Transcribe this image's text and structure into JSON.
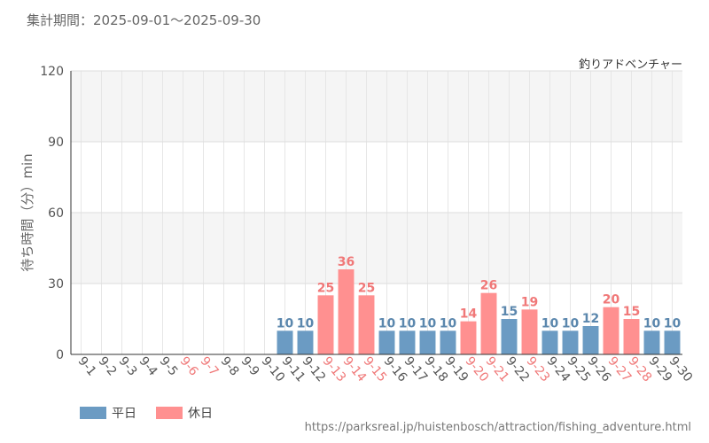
{
  "header": {
    "period": "集計期間：2025-09-01～2025-09-30"
  },
  "attraction_name": "釣りアドベンチャー",
  "source_url": "https://parksreal.jp/huistenbosch/attraction/fishing_adventure.html",
  "colors": {
    "weekday": "#6b9bc3",
    "holiday": "#ff9090",
    "weekday_text": "#5b87ad",
    "holiday_text": "#f07878",
    "tick_default": "#555555"
  },
  "chart_data": {
    "type": "bar",
    "title": "",
    "ylabel": "待ち時間（分）min",
    "xlabel": "",
    "ylim": [
      0,
      120
    ],
    "yticks": [
      0,
      30,
      60,
      90,
      120
    ],
    "grid": true,
    "legend_position": "bottom-left",
    "categories": [
      "9-1",
      "9-2",
      "9-3",
      "9-4",
      "9-5",
      "9-6",
      "9-7",
      "9-8",
      "9-9",
      "9-10",
      "9-11",
      "9-12",
      "9-13",
      "9-14",
      "9-15",
      "9-16",
      "9-17",
      "9-18",
      "9-19",
      "9-20",
      "9-21",
      "9-22",
      "9-23",
      "9-24",
      "9-25",
      "9-26",
      "9-27",
      "9-28",
      "9-29",
      "9-30"
    ],
    "values": [
      null,
      null,
      null,
      null,
      null,
      null,
      null,
      null,
      null,
      null,
      10,
      10,
      25,
      36,
      25,
      10,
      10,
      10,
      10,
      14,
      26,
      15,
      19,
      10,
      10,
      12,
      20,
      15,
      10,
      10
    ],
    "day_type": [
      "weekday",
      "weekday",
      "weekday",
      "weekday",
      "weekday",
      "holiday",
      "holiday",
      "weekday",
      "weekday",
      "weekday",
      "weekday",
      "weekday",
      "holiday",
      "holiday",
      "holiday",
      "weekday",
      "weekday",
      "weekday",
      "weekday",
      "holiday",
      "holiday",
      "weekday",
      "holiday",
      "weekday",
      "weekday",
      "weekday",
      "holiday",
      "holiday",
      "weekday",
      "weekday"
    ],
    "series": [
      {
        "key": "weekday",
        "name": "平日"
      },
      {
        "key": "holiday",
        "name": "休日"
      }
    ]
  }
}
